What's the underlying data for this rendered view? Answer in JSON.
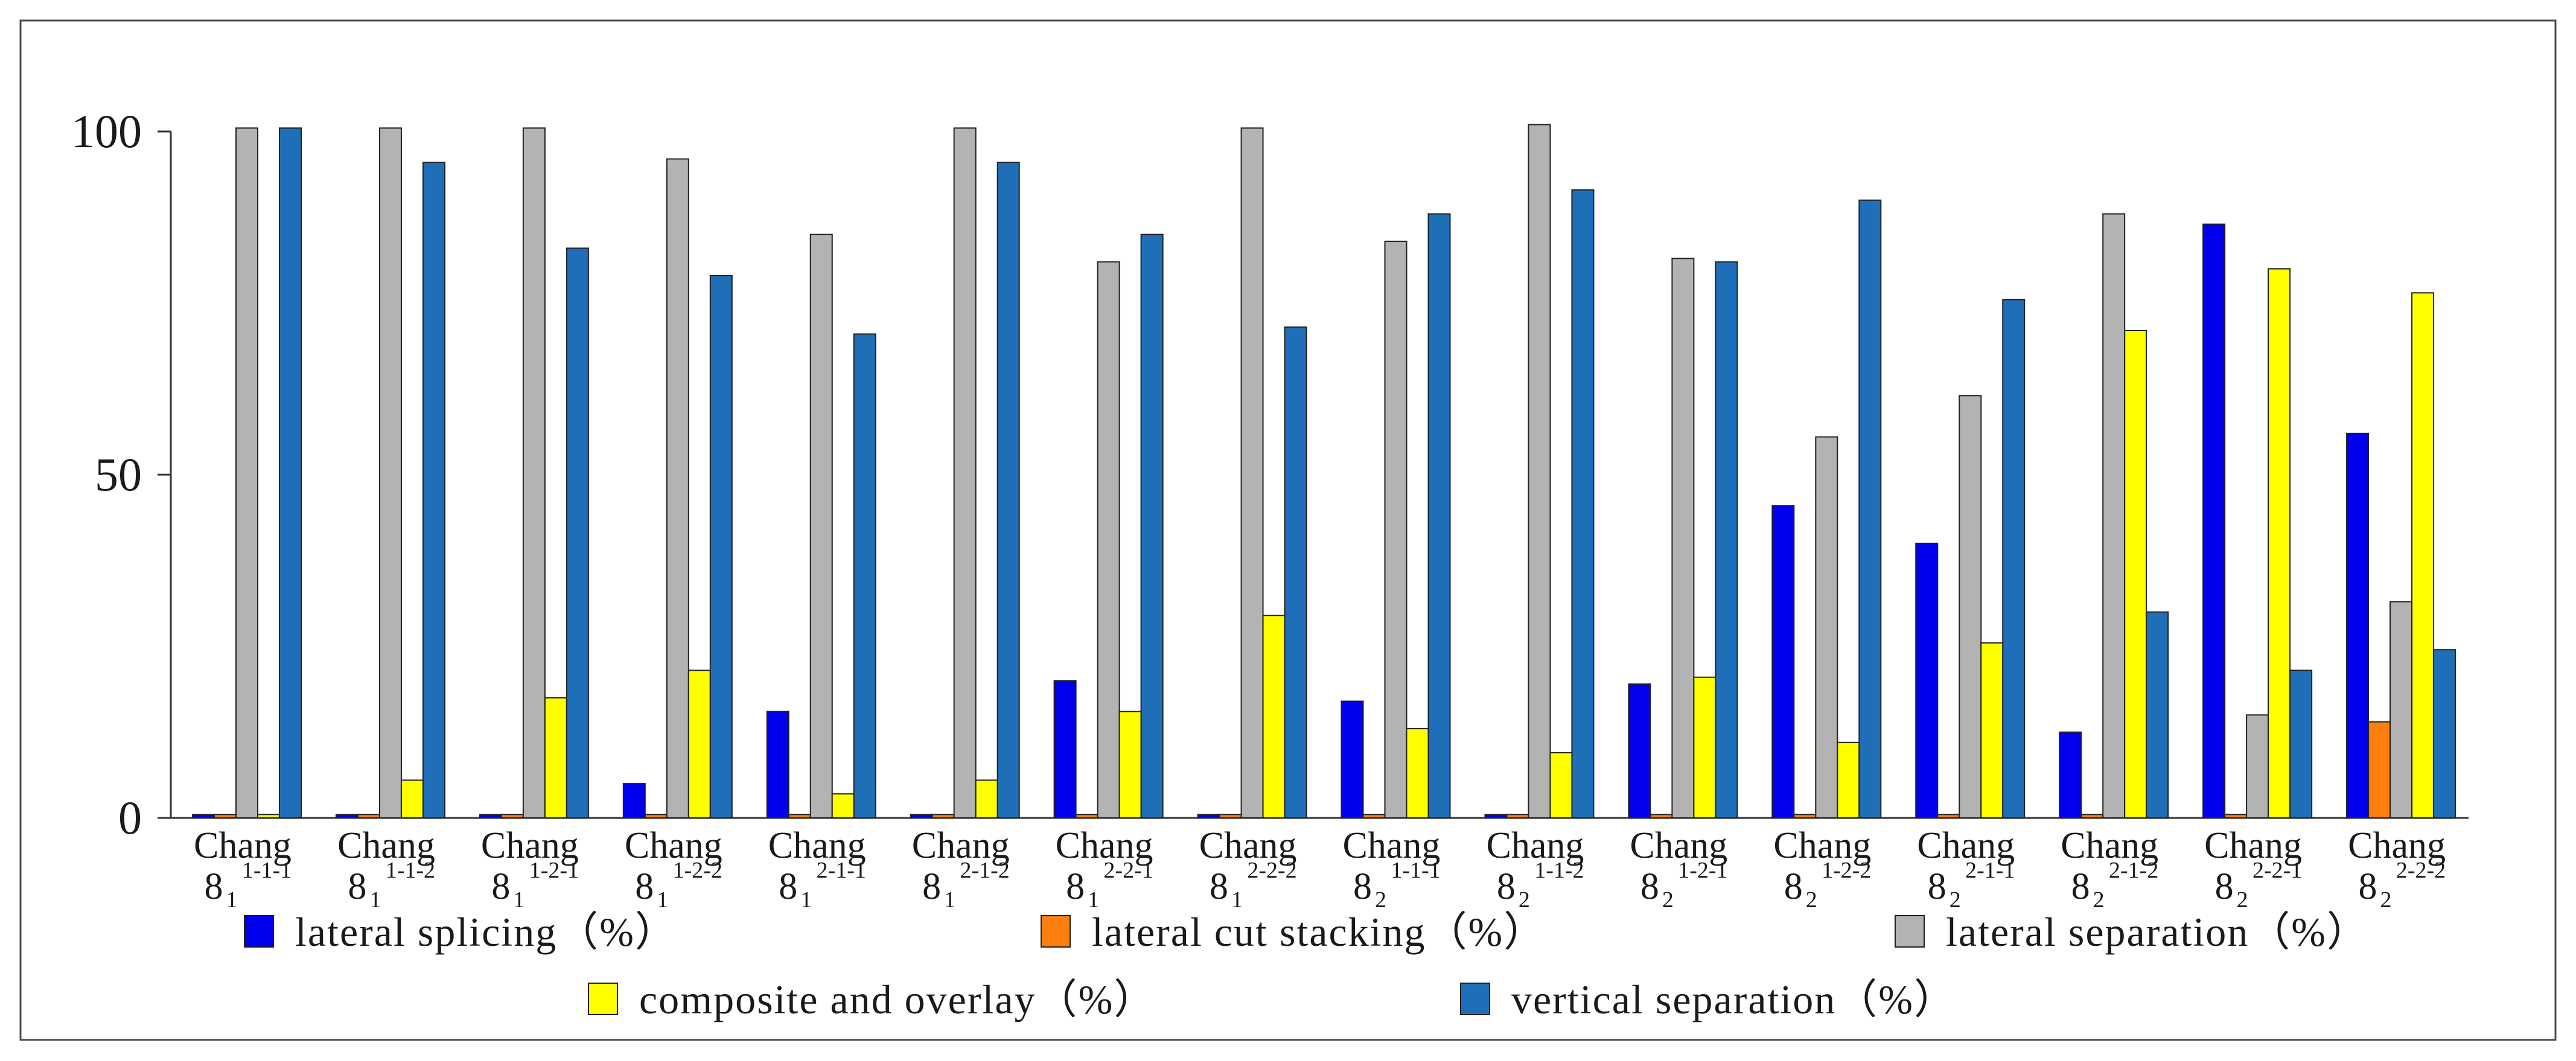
{
  "chart_data": {
    "type": "bar",
    "title": "",
    "xlabel": "",
    "ylabel": "",
    "ylim": [
      0,
      100
    ],
    "yticks": [
      "0",
      "50",
      "100"
    ],
    "grid": false,
    "legend_position": "bottom",
    "categories": [
      {
        "main": "Chang",
        "base": "8",
        "sub": "1",
        "sup": "1-1-1"
      },
      {
        "main": "Chang",
        "base": "8",
        "sub": "1",
        "sup": "1-1-2"
      },
      {
        "main": "Chang",
        "base": "8",
        "sub": "1",
        "sup": "1-2-1"
      },
      {
        "main": "Chang",
        "base": "8",
        "sub": "1",
        "sup": "1-2-2"
      },
      {
        "main": "Chang",
        "base": "8",
        "sub": "1",
        "sup": "2-1-1"
      },
      {
        "main": "Chang",
        "base": "8",
        "sub": "1",
        "sup": "2-1-2"
      },
      {
        "main": "Chang",
        "base": "8",
        "sub": "1",
        "sup": "2-2-1"
      },
      {
        "main": "Chang",
        "base": "8",
        "sub": "1",
        "sup": "2-2-2"
      },
      {
        "main": "Chang",
        "base": "8",
        "sub": "2",
        "sup": "1-1-1"
      },
      {
        "main": "Chang",
        "base": "8",
        "sub": "2",
        "sup": "1-1-2"
      },
      {
        "main": "Chang",
        "base": "8",
        "sub": "2",
        "sup": "1-2-1"
      },
      {
        "main": "Chang",
        "base": "8",
        "sub": "2",
        "sup": "1-2-2"
      },
      {
        "main": "Chang",
        "base": "8",
        "sub": "2",
        "sup": "2-1-1"
      },
      {
        "main": "Chang",
        "base": "8",
        "sub": "2",
        "sup": "2-1-2"
      },
      {
        "main": "Chang",
        "base": "8",
        "sub": "2",
        "sup": "2-2-1"
      },
      {
        "main": "Chang",
        "base": "8",
        "sub": "2",
        "sup": "2-2-2"
      }
    ],
    "series": [
      {
        "name": "lateral splicing（%）",
        "color": "#0000ee",
        "values": [
          0.5,
          0.5,
          0.5,
          5,
          15.5,
          0.5,
          20,
          0.5,
          17,
          0.5,
          19.5,
          45.5,
          40,
          12.5,
          86.5,
          56
        ]
      },
      {
        "name": "lateral cut stacking（%）",
        "color": "#ff7f0e",
        "values": [
          0.5,
          0.5,
          0.5,
          0.5,
          0.5,
          0.5,
          0.5,
          0.5,
          0.5,
          0.5,
          0.5,
          0.5,
          0.5,
          0.5,
          0.5,
          14
        ]
      },
      {
        "name": "lateral separation（%）",
        "color": "#b3b3b3",
        "values": [
          100.5,
          100.5,
          100.5,
          96,
          85,
          100.5,
          81,
          100.5,
          84,
          101,
          81.5,
          55.5,
          61.5,
          88,
          15,
          31.5
        ]
      },
      {
        "name": "composite and overlay（%）",
        "color": "#ffff00",
        "values": [
          0.5,
          5.5,
          17.5,
          21.5,
          3.5,
          5.5,
          15.5,
          29.5,
          13,
          9.5,
          20.5,
          11,
          25.5,
          71,
          80,
          76.5
        ]
      },
      {
        "name": "vertical separation（%）",
        "color": "#1f6fb8",
        "values": [
          100.5,
          95.5,
          83,
          79,
          70.5,
          95.5,
          85,
          71.5,
          88,
          91.5,
          81,
          90,
          75.5,
          30,
          21.5,
          24.5
        ]
      }
    ]
  }
}
